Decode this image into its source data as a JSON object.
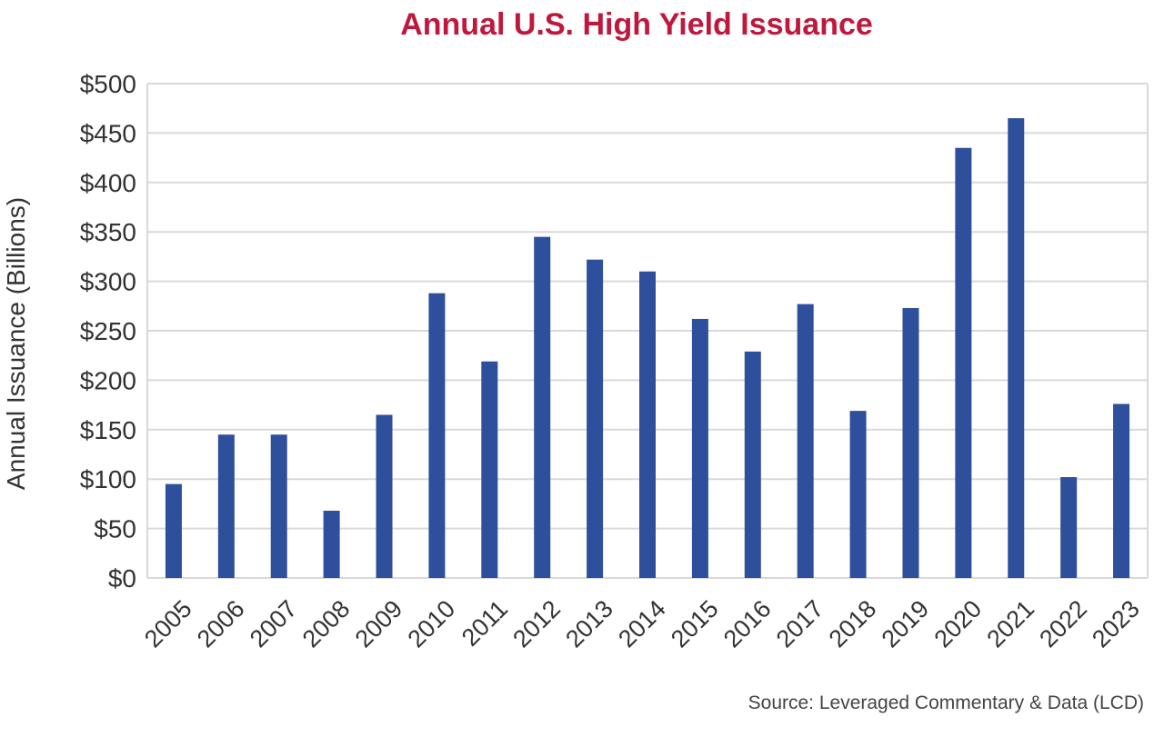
{
  "chart_data": {
    "type": "bar",
    "title": "Annual U.S. High Yield Issuance",
    "ylabel": "Annual Issuance (Billions)",
    "xlabel": "",
    "categories": [
      "2005",
      "2006",
      "2007",
      "2008",
      "2009",
      "2010",
      "2011",
      "2012",
      "2013",
      "2014",
      "2015",
      "2016",
      "2017",
      "2018",
      "2019",
      "2020",
      "2021",
      "2022",
      "2023"
    ],
    "values": [
      95,
      145,
      145,
      68,
      165,
      288,
      219,
      345,
      322,
      310,
      262,
      229,
      277,
      169,
      273,
      435,
      465,
      102,
      176
    ],
    "ylim": [
      0,
      500
    ],
    "yticks": [
      0,
      50,
      100,
      150,
      200,
      250,
      300,
      350,
      400,
      450,
      500
    ],
    "ytick_labels": [
      "$0",
      "$50",
      "$100",
      "$150",
      "$200",
      "$250",
      "$300",
      "$350",
      "$400",
      "$450",
      "$500"
    ],
    "grid": true,
    "source": "Source: Leveraged Commentary & Data (LCD)",
    "colors": {
      "bar": "#2e4f9c",
      "title": "#c0183d",
      "grid": "#d9d9d9",
      "axis_text": "#333333",
      "source_text": "#444444"
    }
  }
}
